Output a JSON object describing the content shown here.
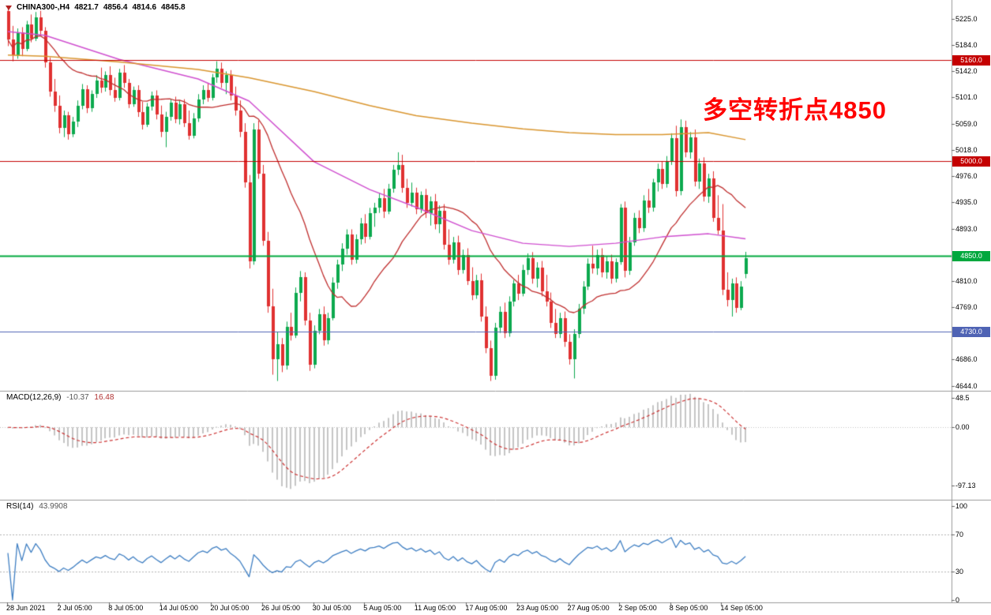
{
  "header": {
    "title": "CHINA300-,H4",
    "open": "4821.7",
    "high": "4856.4",
    "low": "4814.6",
    "close": "4845.8"
  },
  "annotation": {
    "text": "多空转折点4850",
    "color": "#ff0000"
  },
  "price_axis": {
    "ticks": [
      "5225.0",
      "5184.0",
      "5142.0",
      "5101.0",
      "5059.0",
      "5018.0",
      "4976.0",
      "4935.0",
      "4893.0",
      "4810.0",
      "4769.0",
      "4686.0",
      "4644.0"
    ]
  },
  "chart_data": {
    "type": "candlestick",
    "symbol": "CHINA300-",
    "timeframe": "H4",
    "price_range": {
      "max": 5245,
      "min": 4644
    },
    "up_color": "#0ca94e",
    "down_color": "#e03131",
    "hlines": [
      {
        "price": 5160,
        "label": "5160.0",
        "color": "#c40000",
        "width": 1
      },
      {
        "price": 5000,
        "label": "5000.0",
        "color": "#c40000",
        "width": 1
      },
      {
        "price": 4850,
        "label": "4850.0",
        "color": "#00a83e",
        "width": 2
      },
      {
        "price": 4730,
        "label": "4730.0",
        "color": "#4f63b4",
        "width": 1
      }
    ],
    "moving_averages": [
      {
        "period": 20,
        "color": "#bf2e2e"
      }
    ],
    "ma_paths": [
      {
        "name": "medium-ma",
        "color": "#cf4fcf",
        "points": [
          [
            0,
            5205
          ],
          [
            8,
            5199
          ],
          [
            24,
            5161
          ],
          [
            41,
            5130
          ],
          [
            52,
            5095
          ],
          [
            66,
            4999
          ],
          [
            78,
            4955
          ],
          [
            88,
            4927
          ],
          [
            100,
            4890
          ],
          [
            111,
            4870
          ],
          [
            121,
            4865
          ],
          [
            131,
            4870
          ],
          [
            141,
            4880
          ],
          [
            151,
            4885
          ],
          [
            159,
            4877
          ]
        ]
      },
      {
        "name": "slow-ma",
        "color": "#d9952e",
        "points": [
          [
            0,
            5168
          ],
          [
            8,
            5166
          ],
          [
            24,
            5157
          ],
          [
            41,
            5145
          ],
          [
            52,
            5132
          ],
          [
            66,
            5110
          ],
          [
            78,
            5088
          ],
          [
            88,
            5072
          ],
          [
            100,
            5060
          ],
          [
            111,
            5051
          ],
          [
            121,
            5045
          ],
          [
            131,
            5042
          ],
          [
            141,
            5042
          ],
          [
            151,
            5045
          ],
          [
            159,
            5034
          ]
        ]
      }
    ],
    "candles": [
      [
        5238,
        5246,
        5182,
        5192
      ],
      [
        5192,
        5214,
        5158,
        5168
      ],
      [
        5168,
        5210,
        5162,
        5204
      ],
      [
        5204,
        5212,
        5166,
        5178
      ],
      [
        5178,
        5222,
        5174,
        5216
      ],
      [
        5216,
        5232,
        5188,
        5194
      ],
      [
        5194,
        5236,
        5190,
        5228
      ],
      [
        5228,
        5238,
        5198,
        5206
      ],
      [
        5206,
        5212,
        5148,
        5156
      ],
      [
        5156,
        5164,
        5102,
        5110
      ],
      [
        5110,
        5130,
        5078,
        5088
      ],
      [
        5088,
        5104,
        5044,
        5052
      ],
      [
        5052,
        5080,
        5038,
        5072
      ],
      [
        5072,
        5078,
        5034,
        5042
      ],
      [
        5042,
        5070,
        5038,
        5062
      ],
      [
        5062,
        5096,
        5054,
        5088
      ],
      [
        5088,
        5122,
        5082,
        5114
      ],
      [
        5114,
        5120,
        5076,
        5084
      ],
      [
        5084,
        5112,
        5078,
        5106
      ],
      [
        5106,
        5136,
        5100,
        5128
      ],
      [
        5128,
        5148,
        5108,
        5116
      ],
      [
        5116,
        5142,
        5110,
        5136
      ],
      [
        5136,
        5150,
        5104,
        5112
      ],
      [
        5112,
        5132,
        5094,
        5100
      ],
      [
        5100,
        5146,
        5096,
        5140
      ],
      [
        5140,
        5152,
        5116,
        5124
      ],
      [
        5124,
        5130,
        5084,
        5090
      ],
      [
        5090,
        5118,
        5086,
        5112
      ],
      [
        5112,
        5120,
        5070,
        5078
      ],
      [
        5078,
        5094,
        5050,
        5058
      ],
      [
        5058,
        5092,
        5054,
        5086
      ],
      [
        5086,
        5110,
        5080,
        5104
      ],
      [
        5104,
        5112,
        5066,
        5074
      ],
      [
        5074,
        5088,
        5038,
        5046
      ],
      [
        5046,
        5078,
        5022,
        5070
      ],
      [
        5070,
        5098,
        5064,
        5092
      ],
      [
        5092,
        5102,
        5060,
        5066
      ],
      [
        5066,
        5096,
        5058,
        5090
      ],
      [
        5090,
        5098,
        5054,
        5060
      ],
      [
        5060,
        5080,
        5034,
        5040
      ],
      [
        5040,
        5076,
        5036,
        5068
      ],
      [
        5068,
        5106,
        5062,
        5098
      ],
      [
        5098,
        5120,
        5090,
        5112
      ],
      [
        5112,
        5124,
        5094,
        5100
      ],
      [
        5100,
        5138,
        5096,
        5132
      ],
      [
        5132,
        5158,
        5124,
        5146
      ],
      [
        5146,
        5156,
        5116,
        5124
      ],
      [
        5124,
        5142,
        5106,
        5136
      ],
      [
        5136,
        5144,
        5096,
        5104
      ],
      [
        5104,
        5118,
        5072,
        5080
      ],
      [
        5080,
        5096,
        5038,
        5046
      ],
      [
        5046,
        5060,
        4958,
        4966
      ],
      [
        4966,
        4978,
        4830,
        4842
      ],
      [
        4842,
        5060,
        4836,
        5050
      ],
      [
        5050,
        5064,
        4972,
        4980
      ],
      [
        4980,
        4994,
        4866,
        4874
      ],
      [
        4874,
        4888,
        4760,
        4770
      ],
      [
        4770,
        4798,
        4662,
        4686
      ],
      [
        4686,
        4730,
        4652,
        4710
      ],
      [
        4710,
        4720,
        4666,
        4676
      ],
      [
        4676,
        4746,
        4670,
        4738
      ],
      [
        4738,
        4760,
        4716,
        4724
      ],
      [
        4724,
        4800,
        4720,
        4792
      ],
      [
        4792,
        4826,
        4778,
        4816
      ],
      [
        4816,
        4824,
        4740,
        4748
      ],
      [
        4748,
        4760,
        4668,
        4678
      ],
      [
        4678,
        4740,
        4672,
        4732
      ],
      [
        4732,
        4766,
        4726,
        4758
      ],
      [
        4758,
        4770,
        4708,
        4716
      ],
      [
        4716,
        4760,
        4710,
        4752
      ],
      [
        4752,
        4816,
        4748,
        4808
      ],
      [
        4808,
        4844,
        4798,
        4836
      ],
      [
        4836,
        4870,
        4826,
        4862
      ],
      [
        4862,
        4892,
        4852,
        4884
      ],
      [
        4884,
        4892,
        4836,
        4844
      ],
      [
        4844,
        4884,
        4838,
        4876
      ],
      [
        4876,
        4910,
        4868,
        4902
      ],
      [
        4902,
        4916,
        4870,
        4880
      ],
      [
        4880,
        4926,
        4876,
        4918
      ],
      [
        4918,
        4934,
        4896,
        4926
      ],
      [
        4926,
        4950,
        4918,
        4942
      ],
      [
        4942,
        4956,
        4910,
        4920
      ],
      [
        4920,
        4964,
        4916,
        4956
      ],
      [
        4956,
        4994,
        4950,
        4986
      ],
      [
        4986,
        5014,
        4978,
        4994
      ],
      [
        4994,
        5010,
        4950,
        4958
      ],
      [
        4958,
        4972,
        4926,
        4934
      ],
      [
        4934,
        4966,
        4928,
        4950
      ],
      [
        4950,
        4958,
        4916,
        4924
      ],
      [
        4924,
        4952,
        4918,
        4946
      ],
      [
        4946,
        4956,
        4910,
        4918
      ],
      [
        4918,
        4944,
        4898,
        4936
      ],
      [
        4936,
        4948,
        4892,
        4900
      ],
      [
        4900,
        4930,
        4886,
        4922
      ],
      [
        4922,
        4932,
        4860,
        4868
      ],
      [
        4868,
        4892,
        4836,
        4844
      ],
      [
        4844,
        4880,
        4838,
        4872
      ],
      [
        4872,
        4882,
        4820,
        4828
      ],
      [
        4828,
        4860,
        4822,
        4852
      ],
      [
        4852,
        4862,
        4804,
        4810
      ],
      [
        4810,
        4832,
        4780,
        4788
      ],
      [
        4788,
        4820,
        4782,
        4812
      ],
      [
        4812,
        4822,
        4746,
        4754
      ],
      [
        4754,
        4770,
        4696,
        4704
      ],
      [
        4704,
        4716,
        4652,
        4660
      ],
      [
        4660,
        4744,
        4654,
        4736
      ],
      [
        4736,
        4770,
        4728,
        4762
      ],
      [
        4762,
        4776,
        4720,
        4728
      ],
      [
        4728,
        4786,
        4722,
        4778
      ],
      [
        4778,
        4812,
        4770,
        4806
      ],
      [
        4806,
        4820,
        4780,
        4790
      ],
      [
        4790,
        4836,
        4786,
        4828
      ],
      [
        4828,
        4854,
        4820,
        4846
      ],
      [
        4846,
        4856,
        4806,
        4814
      ],
      [
        4814,
        4840,
        4800,
        4832
      ],
      [
        4832,
        4842,
        4786,
        4794
      ],
      [
        4794,
        4820,
        4770,
        4778
      ],
      [
        4778,
        4792,
        4736,
        4744
      ],
      [
        4744,
        4766,
        4720,
        4726
      ],
      [
        4726,
        4760,
        4720,
        4752
      ],
      [
        4752,
        4762,
        4706,
        4714
      ],
      [
        4714,
        4726,
        4678,
        4686
      ],
      [
        4686,
        4734,
        4656,
        4726
      ],
      [
        4726,
        4774,
        4720,
        4766
      ],
      [
        4766,
        4810,
        4758,
        4802
      ],
      [
        4802,
        4846,
        4796,
        4838
      ],
      [
        4838,
        4866,
        4822,
        4830
      ],
      [
        4830,
        4860,
        4820,
        4852
      ],
      [
        4852,
        4862,
        4816,
        4824
      ],
      [
        4824,
        4850,
        4814,
        4842
      ],
      [
        4842,
        4852,
        4806,
        4814
      ],
      [
        4814,
        4846,
        4808,
        4840
      ],
      [
        4840,
        4932,
        4836,
        4926
      ],
      [
        4926,
        4936,
        4816,
        4826
      ],
      [
        4826,
        4880,
        4820,
        4872
      ],
      [
        4872,
        4918,
        4866,
        4910
      ],
      [
        4910,
        4922,
        4886,
        4894
      ],
      [
        4894,
        4946,
        4888,
        4938
      ],
      [
        4938,
        4956,
        4918,
        4926
      ],
      [
        4926,
        4972,
        4920,
        4966
      ],
      [
        4966,
        4996,
        4952,
        4988
      ],
      [
        4988,
        5000,
        4956,
        4964
      ],
      [
        4964,
        5008,
        4958,
        5000
      ],
      [
        5000,
        5044,
        4994,
        5036
      ],
      [
        5036,
        5056,
        4944,
        4952
      ],
      [
        4952,
        5066,
        4946,
        5054
      ],
      [
        5054,
        5064,
        5006,
        5014
      ],
      [
        5014,
        5046,
        5004,
        5038
      ],
      [
        5038,
        5050,
        4960,
        4968
      ],
      [
        4968,
        5004,
        4956,
        4996
      ],
      [
        4996,
        5006,
        4936,
        4944
      ],
      [
        4944,
        4980,
        4934,
        4972
      ],
      [
        4972,
        4984,
        4904,
        4910
      ],
      [
        4910,
        4946,
        4884,
        4890
      ],
      [
        4890,
        4932,
        4788,
        4796
      ],
      [
        4796,
        4824,
        4770,
        4780
      ],
      [
        4780,
        4814,
        4754,
        4806
      ],
      [
        4806,
        4816,
        4760,
        4768
      ],
      [
        4768,
        4810,
        4764,
        4802
      ],
      [
        4821.7,
        4856.4,
        4814.6,
        4845.8
      ]
    ],
    "x_labels": [
      "28 Jun 2021",
      "2 Jul 05:00",
      "8 Jul 05:00",
      "14 Jul 05:00",
      "20 Jul 05:00",
      "26 Jul 05:00",
      "30 Jul 05:00",
      "5 Aug 05:00",
      "11 Aug 05:00",
      "17 Aug 05:00",
      "23 Aug 05:00",
      "27 Aug 05:00",
      "2 Sep 05:00",
      "8 Sep 05:00",
      "14 Sep 05:00"
    ],
    "indicators": {
      "macd": {
        "name": "MACD(12,26,9)",
        "fast": 12,
        "slow": 26,
        "signal": 9,
        "main_value": "-10.37",
        "signal_value": "16.48",
        "axis_ticks": [
          "48.5",
          "0.00",
          "-97.13"
        ],
        "range": {
          "max": 58,
          "min": -115
        },
        "histogram_color": "#c4c4c4",
        "signal_color": "#cc3333"
      },
      "rsi": {
        "name": "RSI(14)",
        "period": 14,
        "value": "43.9908",
        "axis_ticks": [
          "100",
          "70",
          "30",
          "0"
        ],
        "levels": [
          70,
          30
        ],
        "range": {
          "max": 100,
          "min": 0
        },
        "line_color": "#3e7ec2"
      }
    }
  }
}
